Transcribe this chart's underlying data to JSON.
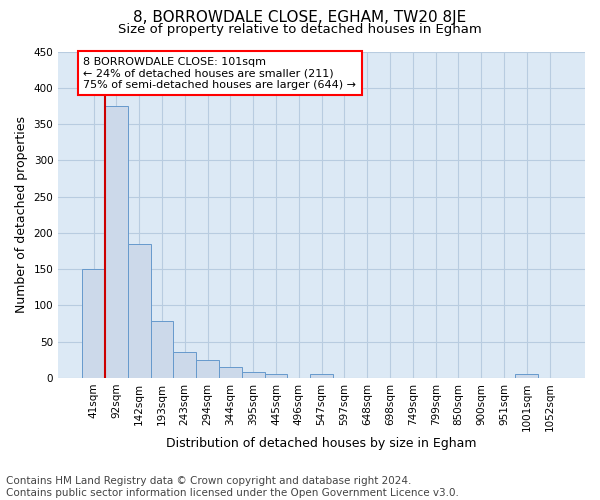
{
  "title1": "8, BORROWDALE CLOSE, EGHAM, TW20 8JE",
  "title2": "Size of property relative to detached houses in Egham",
  "xlabel": "Distribution of detached houses by size in Egham",
  "ylabel": "Number of detached properties",
  "bar_labels": [
    "41sqm",
    "92sqm",
    "142sqm",
    "193sqm",
    "243sqm",
    "294sqm",
    "344sqm",
    "395sqm",
    "445sqm",
    "496sqm",
    "547sqm",
    "597sqm",
    "648sqm",
    "698sqm",
    "749sqm",
    "799sqm",
    "850sqm",
    "900sqm",
    "951sqm",
    "1001sqm",
    "1052sqm"
  ],
  "bar_values": [
    150,
    375,
    185,
    78,
    36,
    25,
    15,
    8,
    5,
    0,
    5,
    0,
    0,
    0,
    0,
    0,
    0,
    0,
    0,
    5,
    0
  ],
  "bar_color": "#ccd9ea",
  "bar_edge_color": "#6699cc",
  "red_line_x": 0.5,
  "annotation_text": "8 BORROWDALE CLOSE: 101sqm\n← 24% of detached houses are smaller (211)\n75% of semi-detached houses are larger (644) →",
  "annotation_box_facecolor": "white",
  "annotation_box_edgecolor": "red",
  "red_line_color": "#cc0000",
  "ylim": [
    0,
    450
  ],
  "yticks": [
    0,
    50,
    100,
    150,
    200,
    250,
    300,
    350,
    400,
    450
  ],
  "grid_color": "#b8cce0",
  "background_color": "#dce9f5",
  "footer_text": "Contains HM Land Registry data © Crown copyright and database right 2024.\nContains public sector information licensed under the Open Government Licence v3.0.",
  "title1_fontsize": 11,
  "title2_fontsize": 9.5,
  "xlabel_fontsize": 9,
  "ylabel_fontsize": 9,
  "tick_fontsize": 7.5,
  "footer_fontsize": 7.5,
  "annotation_fontsize": 8
}
